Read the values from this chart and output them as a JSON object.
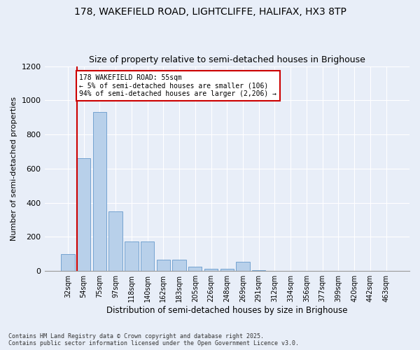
{
  "title1": "178, WAKEFIELD ROAD, LIGHTCLIFFE, HALIFAX, HX3 8TP",
  "title2": "Size of property relative to semi-detached houses in Brighouse",
  "xlabel": "Distribution of semi-detached houses by size in Brighouse",
  "ylabel": "Number of semi-detached properties",
  "categories": [
    "32sqm",
    "54sqm",
    "75sqm",
    "97sqm",
    "118sqm",
    "140sqm",
    "162sqm",
    "183sqm",
    "205sqm",
    "226sqm",
    "248sqm",
    "269sqm",
    "291sqm",
    "312sqm",
    "334sqm",
    "356sqm",
    "377sqm",
    "399sqm",
    "420sqm",
    "442sqm",
    "463sqm"
  ],
  "values": [
    100,
    660,
    930,
    350,
    175,
    175,
    65,
    65,
    25,
    15,
    15,
    55,
    5,
    2,
    1,
    1,
    1,
    0,
    0,
    0,
    0
  ],
  "bar_color": "#b8d0ea",
  "bar_edge_color": "#6699cc",
  "vline_color": "#cc0000",
  "annotation_title": "178 WAKEFIELD ROAD: 55sqm",
  "annotation_line1": "← 5% of semi-detached houses are smaller (106)",
  "annotation_line2": "94% of semi-detached houses are larger (2,206) →",
  "annotation_box_color": "#ffffff",
  "annotation_box_edge": "#cc0000",
  "ylim": [
    0,
    1200
  ],
  "yticks": [
    0,
    200,
    400,
    600,
    800,
    1000,
    1200
  ],
  "footer1": "Contains HM Land Registry data © Crown copyright and database right 2025.",
  "footer2": "Contains public sector information licensed under the Open Government Licence v3.0.",
  "background_color": "#e8eef8",
  "grid_color": "#ffffff",
  "title1_fontsize": 10,
  "title2_fontsize": 9
}
